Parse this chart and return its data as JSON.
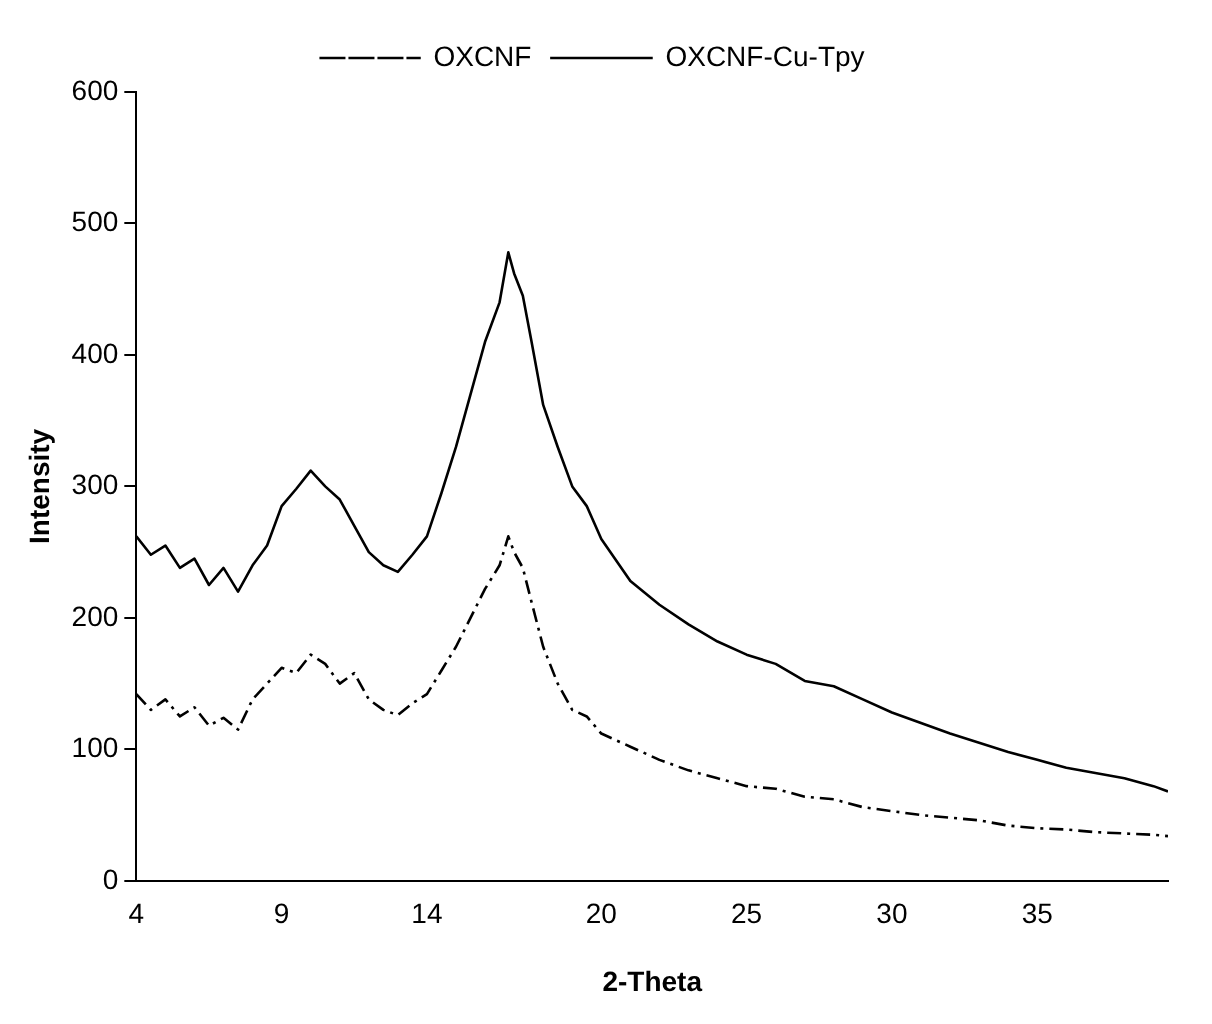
{
  "chart_data": {
    "type": "line",
    "xlabel": "2-Theta",
    "ylabel": "Intensity",
    "xlim": [
      4,
      39.5
    ],
    "xticks": [
      4,
      9,
      14,
      20,
      25,
      30,
      35
    ],
    "ylim": [
      0,
      600
    ],
    "yticks": [
      0,
      100,
      200,
      300,
      400,
      500,
      600
    ],
    "grid": false,
    "legend": "top",
    "marker": "none",
    "series": [
      {
        "name": "OXCNF",
        "color": "#000000",
        "line_style": "dashed",
        "x": [
          4,
          4.5,
          5,
          5.5,
          6,
          6.5,
          7,
          7.5,
          8,
          8.5,
          9,
          9.5,
          10,
          10.5,
          11,
          11.5,
          12,
          12.5,
          13,
          13.5,
          14,
          14.5,
          15,
          15.5,
          16,
          16.5,
          16.8,
          17,
          17.3,
          17.6,
          18,
          18.5,
          19,
          19.5,
          20,
          21,
          22,
          23,
          24,
          25,
          26,
          27,
          28,
          29,
          30,
          31,
          32,
          33,
          34,
          35,
          36,
          37,
          38,
          39,
          39.5
        ],
        "values": [
          142,
          130,
          138,
          125,
          132,
          118,
          124,
          115,
          138,
          150,
          162,
          158,
          172,
          165,
          150,
          158,
          138,
          130,
          126,
          135,
          142,
          160,
          178,
          200,
          222,
          240,
          262,
          250,
          238,
          212,
          178,
          150,
          130,
          125,
          112,
          102,
          92,
          84,
          78,
          72,
          70,
          64,
          62,
          56,
          53,
          50,
          48,
          46,
          42,
          40,
          39,
          37,
          36,
          35,
          34
        ]
      },
      {
        "name": "OXCNF-Cu-Tpy",
        "color": "#000000",
        "line_style": "solid",
        "x": [
          4,
          4.5,
          5,
          5.5,
          6,
          6.5,
          7,
          7.5,
          8,
          8.5,
          9,
          9.5,
          10,
          10.5,
          11,
          11.5,
          12,
          12.5,
          13,
          13.5,
          14,
          14.5,
          15,
          15.5,
          16,
          16.5,
          16.8,
          17,
          17.3,
          17.6,
          18,
          18.5,
          19,
          19.5,
          20,
          21,
          22,
          23,
          24,
          25,
          26,
          27,
          28,
          29,
          30,
          31,
          32,
          33,
          34,
          35,
          36,
          37,
          38,
          39,
          39.5
        ],
        "values": [
          262,
          248,
          255,
          238,
          245,
          225,
          238,
          220,
          240,
          255,
          285,
          298,
          312,
          300,
          290,
          270,
          250,
          240,
          235,
          248,
          262,
          295,
          330,
          370,
          410,
          440,
          478,
          462,
          445,
          410,
          362,
          330,
          300,
          285,
          260,
          228,
          210,
          195,
          182,
          172,
          165,
          152,
          148,
          138,
          128,
          120,
          112,
          105,
          98,
          92,
          86,
          82,
          78,
          72,
          68
        ]
      }
    ]
  }
}
